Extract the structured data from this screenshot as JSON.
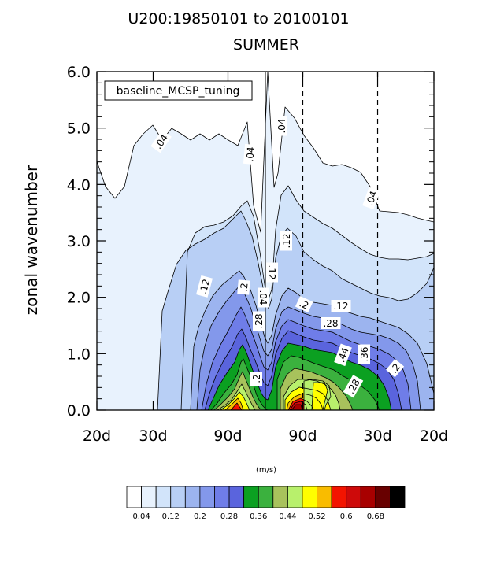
{
  "chart_data": {
    "type": "contour",
    "title": "U200:19850101 to 20100101",
    "subtitle": "SUMMER",
    "ylabel": "zonal wavenumber",
    "legend_box": "baseline_MCSP_tuning",
    "units": "(m/s)",
    "ylim": [
      0.0,
      6.0
    ],
    "y_ticks": [
      "0.0",
      "1.0",
      "2.0",
      "3.0",
      "4.0",
      "5.0",
      "6.0"
    ],
    "x_ticks": [
      "20d",
      "30d",
      "90d",
      "90d",
      "30d",
      "20d"
    ],
    "x_tick_positions": [
      -0.05,
      -0.0333,
      -0.0111,
      0.0111,
      0.0333,
      0.05
    ],
    "xlim": [
      -0.05,
      0.05
    ],
    "contour_levels": [
      0.04,
      0.08,
      0.12,
      0.16,
      0.2,
      0.24,
      0.28,
      0.32,
      0.36,
      0.4,
      0.44,
      0.48,
      0.52,
      0.56,
      0.6,
      0.64,
      0.68
    ],
    "colorbar_labels": [
      "0.04",
      "0.12",
      "0.2",
      "0.28",
      "0.36",
      "0.44",
      "0.52",
      "0.6",
      "0.68"
    ],
    "colorbar_colors": [
      "#ffffff",
      "#e8f2fd",
      "#d2e4fa",
      "#b8cff5",
      "#9cb4ef",
      "#8398eb",
      "#6f7de8",
      "#5a64dd",
      "#0ba021",
      "#3bb13e",
      "#a8c25c",
      "#b8f06c",
      "#fffe00",
      "#f9bc00",
      "#f31400",
      "#ce0a0a",
      "#a80000",
      "#680000",
      "#000000"
    ],
    "contour_labels": [
      ".04",
      ".04",
      ".04",
      ".04",
      ".12",
      ".12",
      ".12",
      ".12",
      ".2",
      ".2",
      ".2",
      ".28",
      ".28",
      ".28",
      ".04",
      ".2",
      ".36",
      ".44"
    ]
  }
}
